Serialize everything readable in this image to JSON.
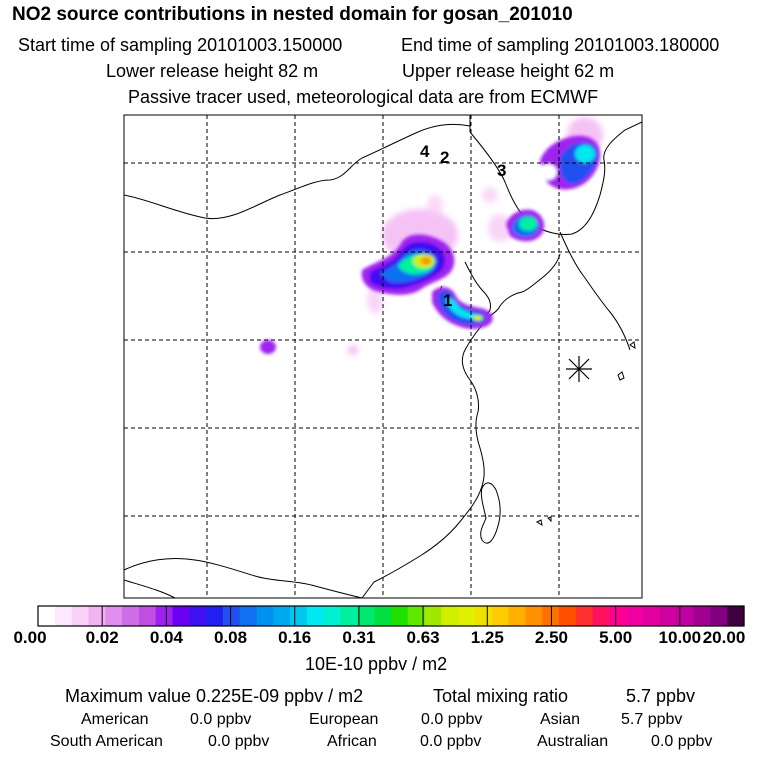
{
  "header": {
    "title": "NO2 source contributions in nested domain for gosan_201010",
    "start_time": "Start time of sampling 20101003.150000",
    "end_time": "End time of sampling 20101003.180000",
    "lower_height": "Lower release height   82 m",
    "upper_height": "Upper release height   62 m",
    "note": "Passive tracer used, meteorological data are from ECMWF"
  },
  "map": {
    "source_labels": [
      "4",
      "2",
      "3",
      "1"
    ],
    "receptor_marker": "asterisk"
  },
  "colorbar": {
    "ticks": [
      "0.00",
      "0.02",
      "0.04",
      "0.08",
      "0.16",
      "0.31",
      "0.63",
      "1.25",
      "2.50",
      "5.00",
      "10.00",
      "20.00"
    ],
    "colors": [
      "#ffffff",
      "#fde9fd",
      "#f8d0f8",
      "#f3b3f3",
      "#e08ef0",
      "#d06ee8",
      "#c04ee0",
      "#a020f0",
      "#6a00f0",
      "#4010f0",
      "#2020f0",
      "#2050f0",
      "#1070f0",
      "#0090f0",
      "#00a8f0",
      "#00c8f0",
      "#00e8f0",
      "#00f0d0",
      "#00f0a0",
      "#00e870",
      "#00e040",
      "#20e000",
      "#60e800",
      "#a0e800",
      "#d0f000",
      "#e0f000",
      "#f0e000",
      "#ffcc00",
      "#ffb000",
      "#ff9000",
      "#ff7000",
      "#ff5000",
      "#ff3030",
      "#ff1060",
      "#ff0090",
      "#f000a0",
      "#e000a0",
      "#d000a0",
      "#c000a0",
      "#a00090",
      "#800080",
      "#400040"
    ],
    "unit": "10E-10 ppbv / m2"
  },
  "summary": {
    "maximum": "Maximum value  0.225E-09 ppbv / m2",
    "total": "Total mixing ratio",
    "total_value": "5.7 ppbv",
    "american_label": "American",
    "american_value": "0.0 ppbv",
    "european_label": "European",
    "european_value": "0.0 ppbv",
    "asian_label": "Asian",
    "asian_value": "5.7 ppbv",
    "south_american_label": "South American",
    "south_american_value": "0.0 ppbv",
    "african_label": "African",
    "african_value": "0.0 ppbv",
    "australian_label": "Australian",
    "australian_value": "0.0 ppbv"
  }
}
